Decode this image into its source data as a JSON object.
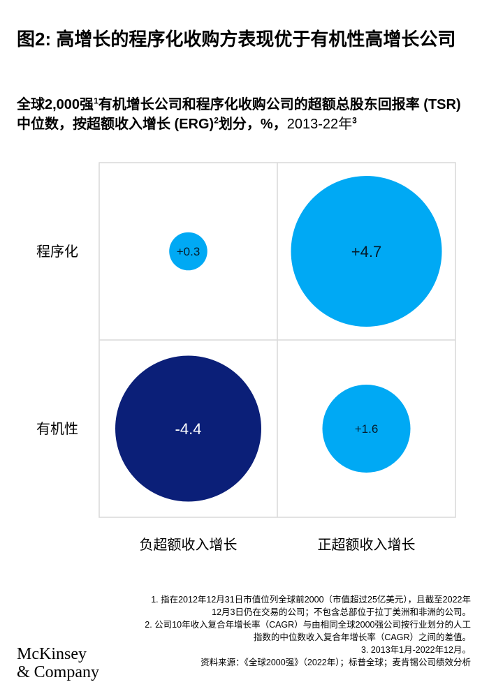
{
  "title": "图2: 高增长的程序化收购方表现优于有机性高增长公司",
  "subtitle": {
    "part1": "全球2,000强",
    "sup1": "1",
    "part2": "有机增长公司和程序化收购公司的超额总股东回报率 (TSR) 中位数，按超额收入增长 (ERG)",
    "sup2": "2",
    "part3": "划分，%，",
    "years": "2013-22年",
    "sup3": "3"
  },
  "chart_data": {
    "type": "bubble-matrix",
    "rows": [
      "程序化",
      "有机性"
    ],
    "columns": [
      "负超额收入增长",
      "正超额收入增长"
    ],
    "grid": true,
    "cells": [
      {
        "row": "程序化",
        "column": "负超额收入增长",
        "value": 0.3,
        "label": "+0.3",
        "color": "#00a9f4",
        "label_color": "#051c2c"
      },
      {
        "row": "程序化",
        "column": "正超额收入增长",
        "value": 4.7,
        "label": "+4.7",
        "color": "#00a9f4",
        "label_color": "#051c2c"
      },
      {
        "row": "有机性",
        "column": "负超额收入增长",
        "value": -4.4,
        "label": "-4.4",
        "color": "#0b1f78",
        "label_color": "#ffffff"
      },
      {
        "row": "有机性",
        "column": "正超额收入增长",
        "value": 1.6,
        "label": "+1.6",
        "color": "#00a9f4",
        "label_color": "#051c2c"
      }
    ]
  },
  "footnotes": [
    "1.  指在2012年12月31日市值位列全球前2000（市值超过25亿美元），且截至2022年12月3日仍在交易的公司；不包含总部位于拉丁美洲和非洲的公司。",
    "2.  公司10年收入复合年增长率（CAGR）与由相同全球2000强公司按行业划分的人工指数的中位数收入复合年增长率（CAGR）之间的差值。",
    "3.  2013年1月-2022年12月。"
  ],
  "source": "资料来源：《全球2000强》（2022年）；标普全球；麦肯锡公司绩效分析",
  "logo": {
    "line1": "McKinsey",
    "line2": "& Company"
  },
  "colors": {
    "positive": "#00a9f4",
    "negative": "#0b1f78",
    "grid": "#d9d9d9"
  }
}
